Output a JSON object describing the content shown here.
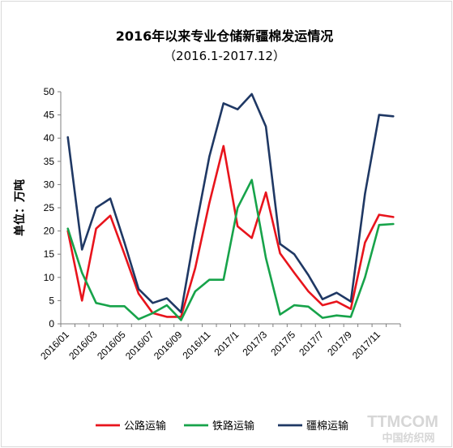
{
  "chart_data": {
    "type": "line",
    "title": "2016年以来专业仓储新疆棉发运情况",
    "subtitle": "（2016.1-2017.12）",
    "ylabel": "单位：万吨",
    "xlabel": "",
    "ylim": [
      0,
      50
    ],
    "yticks": [
      0,
      5,
      10,
      15,
      20,
      25,
      30,
      35,
      40,
      45,
      50
    ],
    "x": [
      "2016/01",
      "2016/02",
      "2016/03",
      "2016/04",
      "2016/05",
      "2016/06",
      "2016/07",
      "2016/08",
      "2016/09",
      "2016/10",
      "2016/11",
      "2016/12",
      "2017/1",
      "2017/2",
      "2017/3",
      "2017/4",
      "2017/5",
      "2017/6",
      "2017/7",
      "2017/8",
      "2017/9",
      "2017/10",
      "2017/11",
      "2017/12"
    ],
    "xtick_labels": [
      "2016/01",
      "2016/03",
      "2016/05",
      "2016/07",
      "2016/09",
      "2016/11",
      "2017/1",
      "2017/3",
      "2017/5",
      "2017/7",
      "2017/9",
      "2017/11"
    ],
    "grid": false,
    "legend_position": "bottom",
    "series": [
      {
        "name": "公路运输",
        "color": "#e8141c",
        "values": [
          20.0,
          5.0,
          20.5,
          23.3,
          15.0,
          6.5,
          2.3,
          1.5,
          1.5,
          12.0,
          26.0,
          38.3,
          21.0,
          18.5,
          28.3,
          15.2,
          11.0,
          7.0,
          4.0,
          4.8,
          3.2,
          17.5,
          23.5,
          23.0
        ]
      },
      {
        "name": "铁路运输",
        "color": "#17a34a",
        "values": [
          20.5,
          11.0,
          4.5,
          3.8,
          3.8,
          1.0,
          2.3,
          4.0,
          0.8,
          7.0,
          9.5,
          9.5,
          25.0,
          31.0,
          14.2,
          2.0,
          4.0,
          3.7,
          1.3,
          1.8,
          1.5,
          10.0,
          21.3,
          21.5
        ]
      },
      {
        "name": "疆棉运输",
        "color": "#1f3864",
        "values": [
          40.2,
          16.0,
          25.0,
          27.0,
          17.5,
          7.5,
          4.5,
          5.5,
          2.5,
          20.0,
          36.0,
          47.5,
          46.2,
          49.5,
          42.5,
          17.2,
          15.0,
          10.5,
          5.3,
          6.7,
          4.8,
          28.0,
          45.0,
          44.7
        ]
      }
    ]
  },
  "watermark": {
    "latin": "TTMCOM",
    "cn": "中国纺织网"
  }
}
